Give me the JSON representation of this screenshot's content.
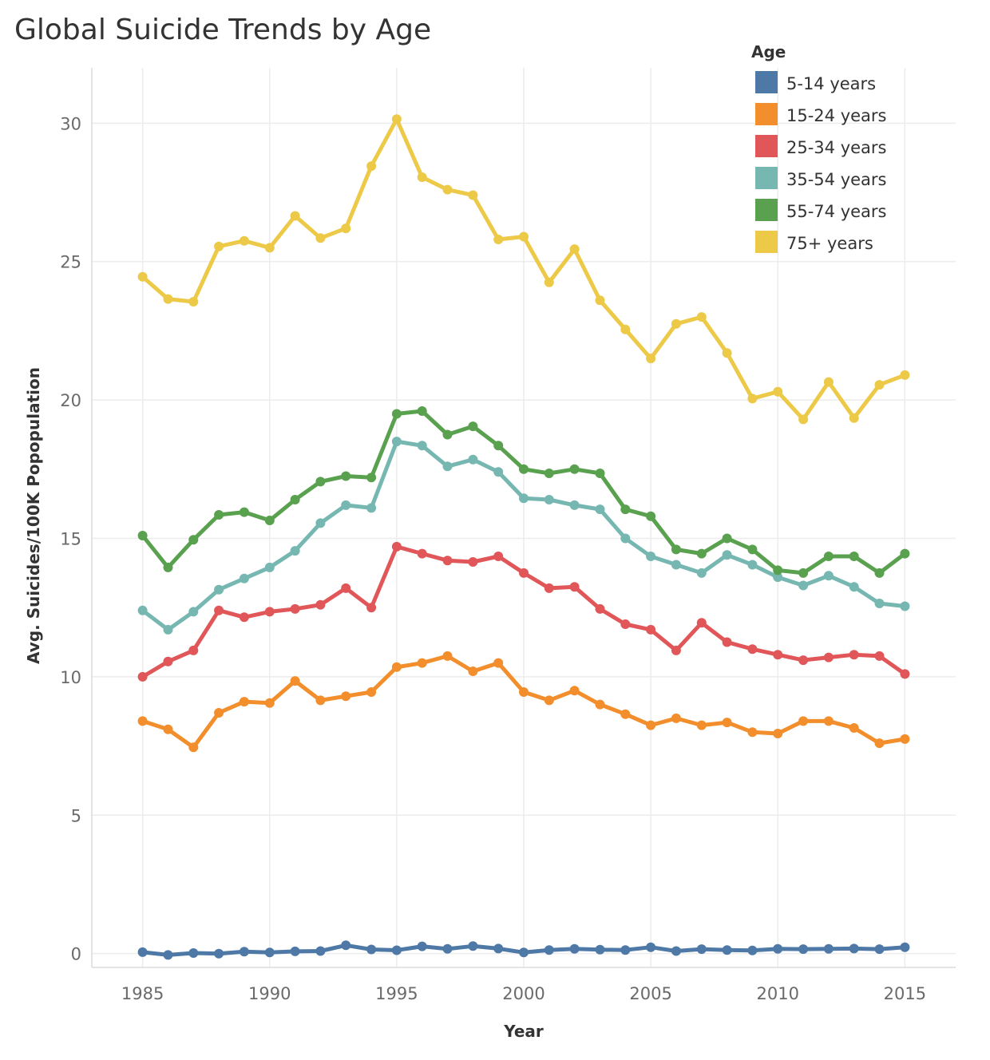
{
  "chart_data": {
    "type": "line",
    "title": "Global Suicide Trends by Age",
    "xlabel": "Year",
    "ylabel": "Avg. Suicides/100K Popopulation",
    "xlim": [
      1983,
      2017
    ],
    "ylim": [
      -0.5,
      32
    ],
    "x_ticks": [
      1985,
      1990,
      1995,
      2000,
      2005,
      2010,
      2015
    ],
    "y_ticks": [
      0,
      5,
      10,
      15,
      20,
      25,
      30
    ],
    "grid": true,
    "legend": {
      "title": "Age",
      "position": "top-right"
    },
    "x": [
      1985,
      1986,
      1987,
      1988,
      1989,
      1990,
      1991,
      1992,
      1993,
      1994,
      1995,
      1996,
      1997,
      1998,
      1999,
      2000,
      2001,
      2002,
      2003,
      2004,
      2005,
      2006,
      2007,
      2008,
      2009,
      2010,
      2011,
      2012,
      2013,
      2014,
      2015
    ],
    "series": [
      {
        "name": "5-14 years",
        "color": "#4e79a7",
        "values": [
          0.05,
          -0.05,
          0.02,
          0.0,
          0.07,
          0.04,
          0.08,
          0.09,
          0.3,
          0.15,
          0.12,
          0.26,
          0.17,
          0.27,
          0.18,
          0.04,
          0.13,
          0.17,
          0.14,
          0.13,
          0.23,
          0.09,
          0.16,
          0.13,
          0.11,
          0.17,
          0.16,
          0.17,
          0.18,
          0.16,
          0.23
        ]
      },
      {
        "name": "15-24 years",
        "color": "#f28e2b",
        "values": [
          8.4,
          8.1,
          7.45,
          8.7,
          9.1,
          9.05,
          9.85,
          9.15,
          9.3,
          9.45,
          10.35,
          10.5,
          10.75,
          10.2,
          10.5,
          9.45,
          9.15,
          9.5,
          9.0,
          8.65,
          8.25,
          8.5,
          8.25,
          8.35,
          8.0,
          7.95,
          8.4,
          8.4,
          8.15,
          7.6,
          7.75
        ]
      },
      {
        "name": "25-34 years",
        "color": "#e15759",
        "values": [
          10.0,
          10.55,
          10.95,
          12.4,
          12.15,
          12.35,
          12.45,
          12.6,
          13.2,
          12.5,
          14.7,
          14.45,
          14.2,
          14.15,
          14.35,
          13.75,
          13.2,
          13.25,
          12.45,
          11.9,
          11.7,
          10.95,
          11.95,
          11.25,
          11.0,
          10.8,
          10.6,
          10.7,
          10.8,
          10.75,
          10.1
        ]
      },
      {
        "name": "35-54 years",
        "color": "#76b7b2",
        "values": [
          12.4,
          11.7,
          12.35,
          13.15,
          13.55,
          13.95,
          14.55,
          15.55,
          16.2,
          16.1,
          18.5,
          18.35,
          17.6,
          17.85,
          17.4,
          16.45,
          16.4,
          16.2,
          16.05,
          15.0,
          14.35,
          14.05,
          13.75,
          14.4,
          14.05,
          13.6,
          13.3,
          13.65,
          13.25,
          12.65,
          12.55
        ]
      },
      {
        "name": "55-74 years",
        "color": "#59a14f",
        "values": [
          15.1,
          13.95,
          14.95,
          15.85,
          15.95,
          15.65,
          16.4,
          17.05,
          17.25,
          17.2,
          19.5,
          19.6,
          18.75,
          19.05,
          18.35,
          17.5,
          17.35,
          17.5,
          17.35,
          16.05,
          15.8,
          14.6,
          14.45,
          15.0,
          14.6,
          13.85,
          13.75,
          14.35,
          14.35,
          13.75,
          14.45
        ]
      },
      {
        "name": "75+ years",
        "color": "#edc948",
        "values": [
          24.45,
          23.65,
          23.55,
          25.55,
          25.75,
          25.5,
          26.65,
          25.85,
          26.2,
          28.45,
          30.15,
          28.05,
          27.6,
          27.4,
          25.8,
          25.9,
          24.25,
          25.45,
          23.6,
          22.55,
          21.5,
          22.75,
          23.0,
          21.7,
          20.05,
          20.3,
          19.3,
          20.65,
          19.35,
          20.55,
          20.9
        ]
      }
    ]
  }
}
